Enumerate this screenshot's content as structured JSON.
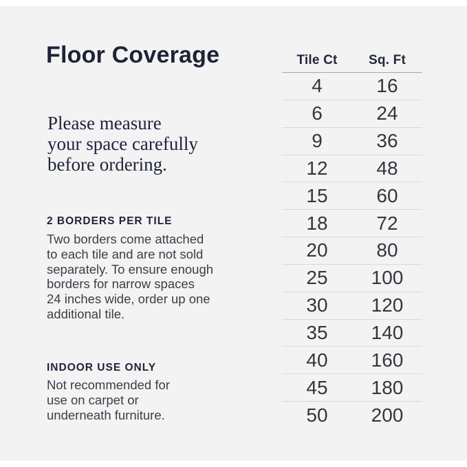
{
  "title": "Floor Coverage",
  "intro": {
    "text": "Please measure\nyour space carefully\nbefore ordering."
  },
  "sections": [
    {
      "heading": "2 BORDERS PER TILE",
      "text": "Two borders come attached\nto each tile and are not sold\nseparately. To ensure enough\nborders for narrow spaces\n24 inches wide, order up one\nadditional tile."
    },
    {
      "heading": "INDOOR USE ONLY",
      "text": "Not recommended for\nuse on carpet or\nunderneath furniture."
    }
  ],
  "table": {
    "columns": [
      "Tile Ct",
      "Sq. Ft"
    ],
    "rows": [
      {
        "tile_ct": "4",
        "sq_ft": "16"
      },
      {
        "tile_ct": "6",
        "sq_ft": "24"
      },
      {
        "tile_ct": "9",
        "sq_ft": "36"
      },
      {
        "tile_ct": "12",
        "sq_ft": "48"
      },
      {
        "tile_ct": "15",
        "sq_ft": "60"
      },
      {
        "tile_ct": "18",
        "sq_ft": "72"
      },
      {
        "tile_ct": "20",
        "sq_ft": "80"
      },
      {
        "tile_ct": "25",
        "sq_ft": "100"
      },
      {
        "tile_ct": "30",
        "sq_ft": "120"
      },
      {
        "tile_ct": "35",
        "sq_ft": "140"
      },
      {
        "tile_ct": "40",
        "sq_ft": "160"
      },
      {
        "tile_ct": "45",
        "sq_ft": "180"
      },
      {
        "tile_ct": "50",
        "sq_ft": "200"
      }
    ]
  },
  "colors": {
    "page_background": "#ffffff",
    "panel_background": "#f3f3f4",
    "heading_navy": "#1f2338",
    "body_gray": "#3b3e45",
    "table_number_gray": "#33363c",
    "header_rule": "#a6a6a9",
    "row_rule": "#dadadc"
  }
}
